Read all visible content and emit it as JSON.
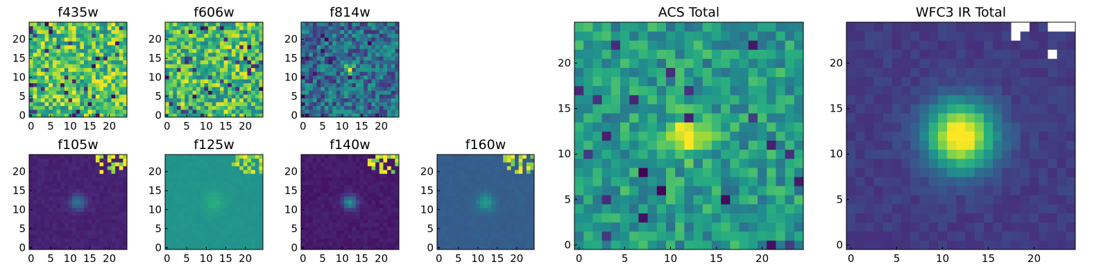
{
  "chart_data": [
    {
      "type": "heatmap",
      "title": "f435w",
      "xlim": [
        0,
        24
      ],
      "ylim": [
        0,
        24
      ],
      "xticks": [
        0,
        5,
        10,
        15,
        20
      ],
      "yticks": [
        0,
        5,
        10,
        15,
        20
      ],
      "colormap": "viridis",
      "pattern": "uniform noise, no visible source",
      "peak_pixel": []
    },
    {
      "type": "heatmap",
      "title": "f606w",
      "xlim": [
        0,
        24
      ],
      "ylim": [
        0,
        24
      ],
      "xticks": [
        0,
        5,
        10,
        15,
        20
      ],
      "yticks": [
        0,
        5,
        10,
        15,
        20
      ],
      "colormap": "viridis",
      "pattern": "uniform noise, no visible source",
      "peak_pixel": []
    },
    {
      "type": "heatmap",
      "title": "f814w",
      "xlim": [
        0,
        24
      ],
      "ylim": [
        0,
        24
      ],
      "xticks": [
        0,
        5,
        10,
        15,
        20
      ],
      "yticks": [
        0,
        5,
        10,
        15,
        20
      ],
      "colormap": "viridis",
      "pattern": "compact bright source",
      "peak_pixel": [
        12,
        12
      ]
    },
    {
      "type": "heatmap",
      "title": "f105w",
      "xlim": [
        0,
        24
      ],
      "ylim": [
        0,
        24
      ],
      "xticks": [
        0,
        5,
        10,
        15,
        20
      ],
      "yticks": [
        0,
        5,
        10,
        15,
        20
      ],
      "colormap": "viridis",
      "pattern": "faint central source, bright pixels top-right",
      "peak_pixel": [
        12,
        12
      ]
    },
    {
      "type": "heatmap",
      "title": "f125w",
      "xlim": [
        0,
        24
      ],
      "ylim": [
        0,
        24
      ],
      "xticks": [
        0,
        5,
        10,
        15,
        20
      ],
      "yticks": [
        0,
        5,
        10,
        15,
        20
      ],
      "colormap": "viridis",
      "pattern": "faint central source, bright pixels top-right",
      "peak_pixel": [
        12,
        12
      ]
    },
    {
      "type": "heatmap",
      "title": "f140w",
      "xlim": [
        0,
        24
      ],
      "ylim": [
        0,
        24
      ],
      "xticks": [
        0,
        5,
        10,
        15,
        20
      ],
      "yticks": [
        0,
        5,
        10,
        15,
        20
      ],
      "colormap": "viridis",
      "pattern": "faint central source, bright pixels top-right",
      "peak_pixel": [
        12,
        12
      ]
    },
    {
      "type": "heatmap",
      "title": "f160w",
      "xlim": [
        0,
        24
      ],
      "ylim": [
        0,
        24
      ],
      "xticks": [
        0,
        5,
        10,
        15,
        20
      ],
      "yticks": [
        0,
        5,
        10,
        15,
        20
      ],
      "colormap": "viridis",
      "pattern": "faint central source, bright pixels top-right",
      "peak_pixel": [
        12,
        12
      ]
    },
    {
      "type": "heatmap",
      "title": "ACS Total",
      "xlim": [
        0,
        24
      ],
      "ylim": [
        0,
        24
      ],
      "xticks": [
        0,
        5,
        10,
        15,
        20
      ],
      "yticks": [
        0,
        5,
        10,
        15,
        20
      ],
      "colormap": "viridis",
      "pattern": "bright source over noisy background",
      "peak_pixel": [
        12,
        12
      ]
    },
    {
      "type": "heatmap",
      "title": "WFC3 IR Total",
      "xlim": [
        0,
        24
      ],
      "ylim": [
        0,
        24
      ],
      "xticks": [
        0,
        5,
        10,
        15,
        20
      ],
      "yticks": [
        0,
        5,
        10,
        15,
        20
      ],
      "colormap": "viridis",
      "pattern": "extended bright source, blank pixels at top-right",
      "peak_pixel": [
        12,
        12
      ]
    }
  ]
}
